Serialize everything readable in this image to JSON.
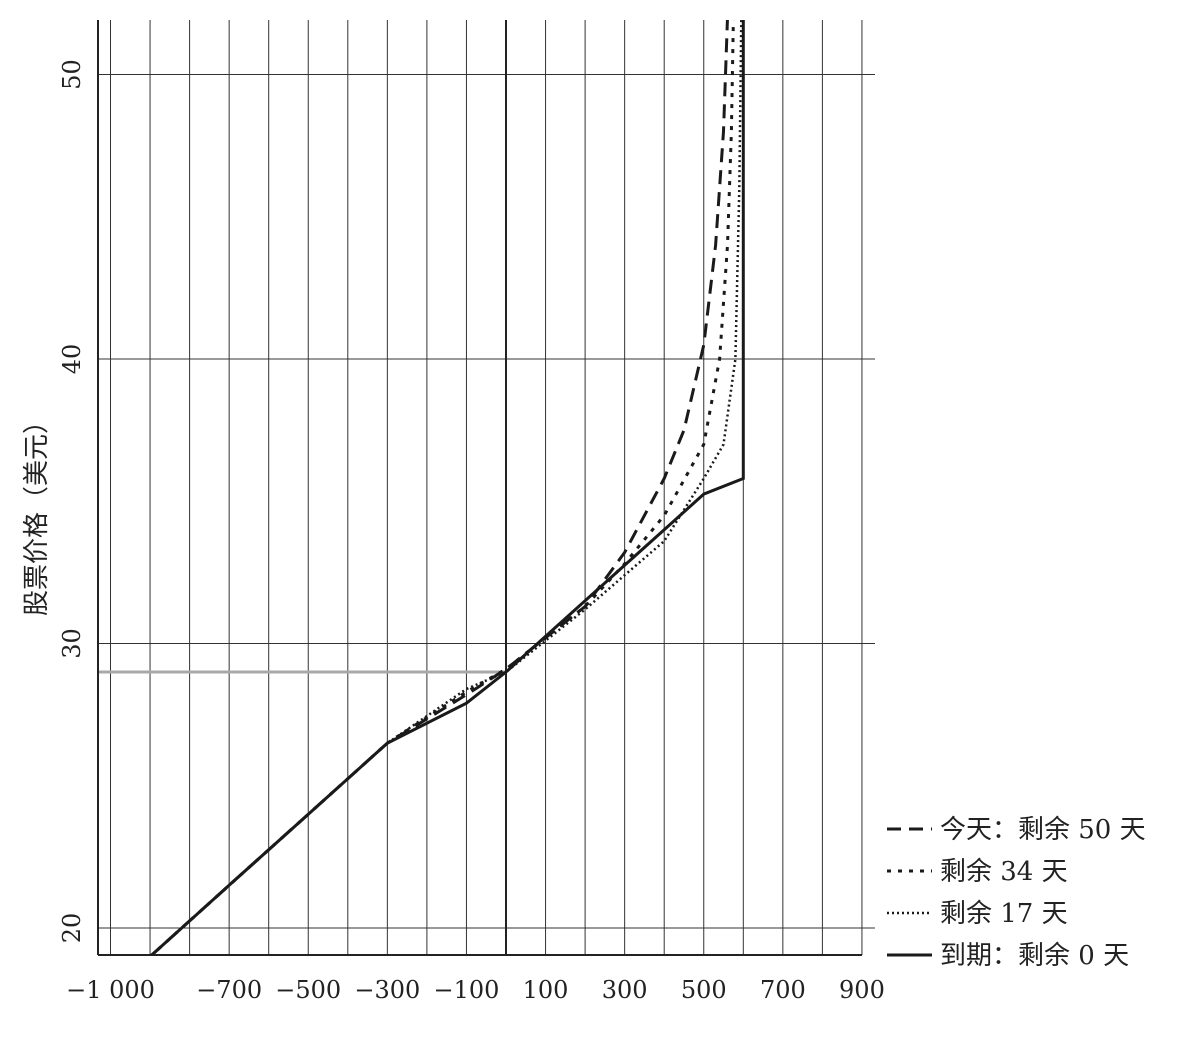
{
  "chart_data": {
    "type": "line",
    "ylabel": "股票价格（美元）",
    "xlabel": "",
    "xlim": [
      -1090,
      900
    ],
    "ylim": [
      19.2,
      52
    ],
    "x_tick_labels": [
      {
        "value": -1000,
        "label": "−1 000"
      },
      {
        "value": -700,
        "label": "−700"
      },
      {
        "value": -500,
        "label": "−500"
      },
      {
        "value": -300,
        "label": "−300"
      },
      {
        "value": -100,
        "label": "−100"
      },
      {
        "value": 100,
        "label": "100"
      },
      {
        "value": 300,
        "label": "300"
      },
      {
        "value": 500,
        "label": "500"
      },
      {
        "value": 700,
        "label": "700"
      },
      {
        "value": 900,
        "label": "900"
      }
    ],
    "y_tick_labels": [
      {
        "value": 20,
        "label": "20"
      },
      {
        "value": 30,
        "label": "30"
      },
      {
        "value": 40,
        "label": "40"
      },
      {
        "value": 50,
        "label": "50"
      }
    ],
    "x_gridlines": [
      -1000,
      -900,
      -800,
      -700,
      -600,
      -500,
      -400,
      -300,
      -200,
      -100,
      0,
      100,
      200,
      300,
      400,
      500,
      600,
      700,
      800,
      900
    ],
    "y_gridlines": [
      20,
      30,
      40,
      50
    ],
    "reference_line_y": 29,
    "grid": true,
    "legend_position": "bottom-right",
    "series": [
      {
        "name": "今天：剩余 50 天",
        "style": "dashed",
        "points": [
          [
            -900,
            19
          ],
          [
            -700,
            21.5
          ],
          [
            -500,
            24
          ],
          [
            -300,
            26.5
          ],
          [
            -100,
            28.2
          ],
          [
            0,
            29.1
          ],
          [
            100,
            30.2
          ],
          [
            200,
            31.3
          ],
          [
            300,
            33.2
          ],
          [
            400,
            35.8
          ],
          [
            450,
            37.5
          ],
          [
            500,
            40.5
          ],
          [
            530,
            44
          ],
          [
            550,
            48
          ],
          [
            560,
            52
          ]
        ]
      },
      {
        "name": "剩余 34 天",
        "style": "dotted",
        "points": [
          [
            -900,
            19
          ],
          [
            -700,
            21.5
          ],
          [
            -500,
            24
          ],
          [
            -300,
            26.5
          ],
          [
            -100,
            28.3
          ],
          [
            0,
            29.1
          ],
          [
            100,
            30.2
          ],
          [
            200,
            31.3
          ],
          [
            300,
            32.8
          ],
          [
            400,
            34.5
          ],
          [
            500,
            37
          ],
          [
            540,
            40
          ],
          [
            560,
            44
          ],
          [
            570,
            48
          ],
          [
            575,
            52
          ]
        ]
      },
      {
        "name": "剩余 17 天",
        "style": "fine-dotted",
        "points": [
          [
            -900,
            19
          ],
          [
            -700,
            21.5
          ],
          [
            -500,
            24
          ],
          [
            -300,
            26.5
          ],
          [
            -100,
            28.4
          ],
          [
            0,
            29
          ],
          [
            100,
            30.1
          ],
          [
            200,
            31.2
          ],
          [
            300,
            32.4
          ],
          [
            400,
            33.6
          ],
          [
            500,
            35.8
          ],
          [
            550,
            37
          ],
          [
            580,
            40
          ],
          [
            590,
            46
          ],
          [
            595,
            52
          ]
        ]
      },
      {
        "name": "到期：剩余 0 天",
        "style": "solid",
        "points": [
          [
            -900,
            19
          ],
          [
            -700,
            21.5
          ],
          [
            -500,
            24
          ],
          [
            -300,
            26.5
          ],
          [
            -100,
            27.9
          ],
          [
            0,
            29
          ],
          [
            100,
            30.25
          ],
          [
            200,
            31.5
          ],
          [
            300,
            32.75
          ],
          [
            400,
            34
          ],
          [
            500,
            35.25
          ],
          [
            600,
            35.8
          ],
          [
            600,
            52
          ]
        ]
      }
    ]
  }
}
